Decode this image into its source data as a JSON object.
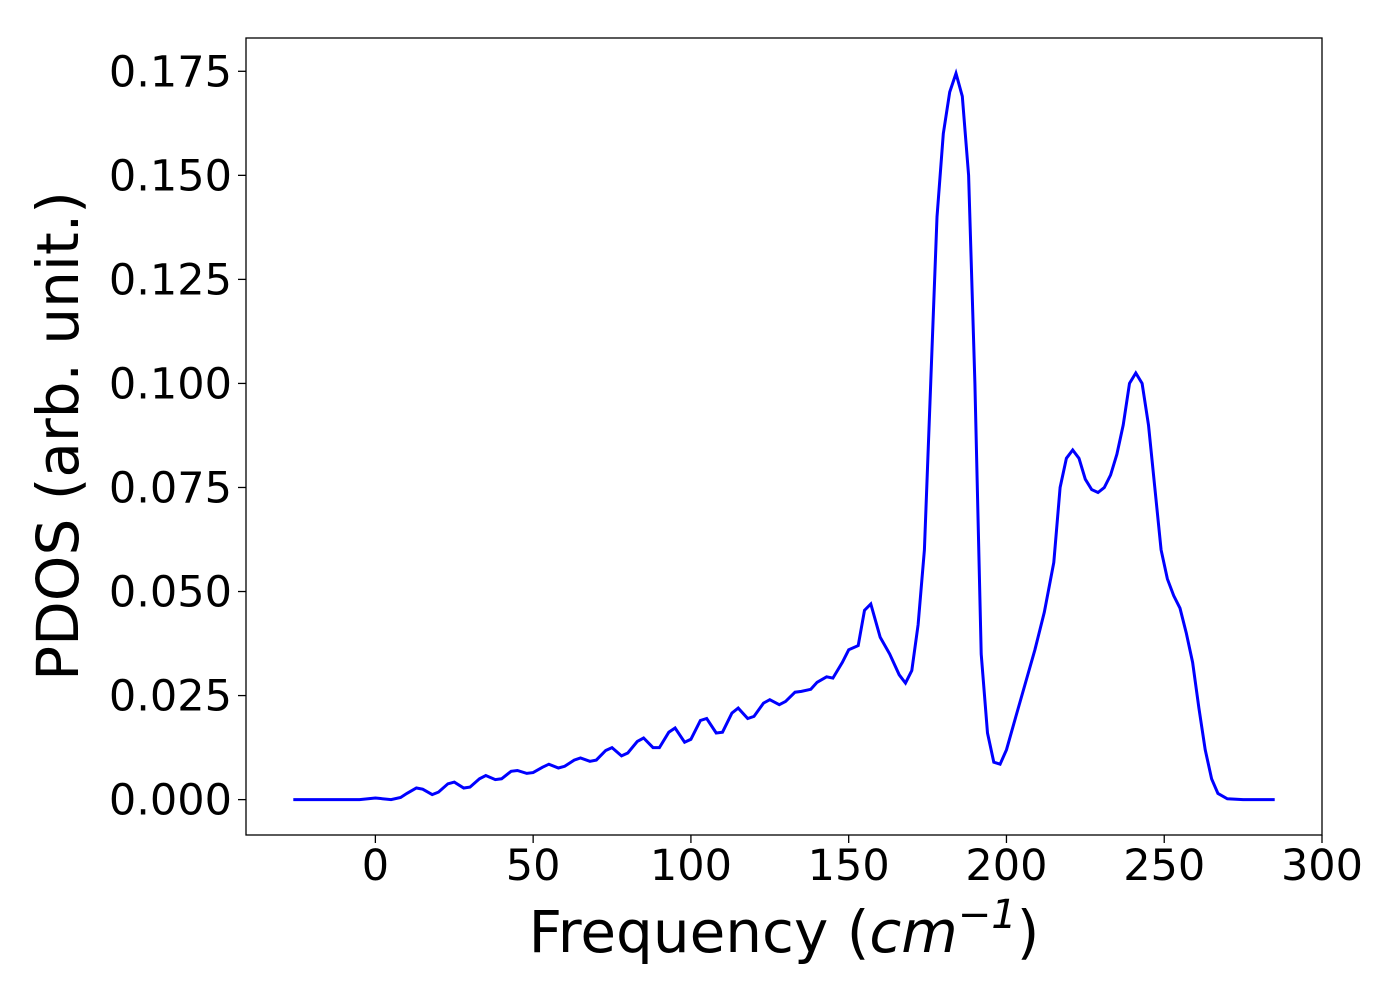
{
  "chart_data": {
    "type": "line",
    "xlabel_prefix": "Frequency (",
    "xlabel_unit_base": "cm",
    "xlabel_unit_exp": "−1",
    "xlabel_suffix": ")",
    "ylabel": "PDOS (arb. unit.)",
    "xlim": [
      -41,
      300
    ],
    "ylim": [
      -0.0085,
      0.183
    ],
    "x_ticks": [
      0,
      50,
      100,
      150,
      200,
      250,
      300
    ],
    "x_tick_labels": [
      "0",
      "50",
      "100",
      "150",
      "200",
      "250",
      "300"
    ],
    "y_ticks": [
      0.0,
      0.025,
      0.05,
      0.075,
      0.1,
      0.125,
      0.15,
      0.175
    ],
    "y_tick_labels": [
      "0.000",
      "0.025",
      "0.050",
      "0.075",
      "0.100",
      "0.125",
      "0.150",
      "0.175"
    ],
    "grid": false,
    "legend": "none",
    "series": [
      {
        "color": "#0000ff",
        "x": [
          -26,
          -20,
          -10,
          -5,
          0,
          5,
          8,
          10,
          13,
          15,
          18,
          20,
          23,
          25,
          28,
          30,
          33,
          35,
          38,
          40,
          43,
          45,
          48,
          50,
          53,
          55,
          58,
          60,
          63,
          65,
          68,
          70,
          73,
          75,
          78,
          80,
          83,
          85,
          88,
          90,
          93,
          95,
          98,
          100,
          103,
          105,
          108,
          110,
          113,
          115,
          118,
          120,
          123,
          125,
          128,
          130,
          133,
          135,
          138,
          140,
          143,
          145,
          148,
          150,
          153,
          155,
          157,
          160,
          163,
          166,
          168,
          170,
          172,
          174,
          176,
          178,
          180,
          182,
          184,
          186,
          188,
          190,
          192,
          194,
          196,
          198,
          200,
          203,
          206,
          209,
          212,
          215,
          217,
          219,
          221,
          223,
          225,
          227,
          229,
          231,
          233,
          235,
          237,
          239,
          241,
          243,
          245,
          247,
          249,
          251,
          253,
          255,
          257,
          259,
          261,
          263,
          265,
          267,
          270,
          275,
          280,
          285
        ],
        "y": [
          0.0,
          0.0,
          0.0,
          0.0,
          0.0004,
          0.0,
          0.0005,
          0.0015,
          0.0028,
          0.0025,
          0.0012,
          0.0018,
          0.0038,
          0.0042,
          0.0028,
          0.003,
          0.005,
          0.0058,
          0.0048,
          0.005,
          0.0068,
          0.007,
          0.0063,
          0.0065,
          0.0078,
          0.0085,
          0.0076,
          0.008,
          0.0095,
          0.01,
          0.0092,
          0.0095,
          0.0118,
          0.0125,
          0.0105,
          0.0112,
          0.014,
          0.0148,
          0.0125,
          0.0125,
          0.0162,
          0.0172,
          0.0138,
          0.0145,
          0.019,
          0.0195,
          0.016,
          0.0162,
          0.0208,
          0.022,
          0.0195,
          0.02,
          0.0232,
          0.024,
          0.0228,
          0.0236,
          0.0258,
          0.026,
          0.0265,
          0.0282,
          0.0295,
          0.0292,
          0.033,
          0.036,
          0.037,
          0.0455,
          0.047,
          0.039,
          0.035,
          0.03,
          0.028,
          0.031,
          0.042,
          0.06,
          0.1,
          0.14,
          0.16,
          0.17,
          0.1745,
          0.169,
          0.15,
          0.1,
          0.035,
          0.016,
          0.009,
          0.0085,
          0.012,
          0.02,
          0.028,
          0.036,
          0.045,
          0.057,
          0.075,
          0.082,
          0.084,
          0.082,
          0.077,
          0.0745,
          0.0738,
          0.075,
          0.078,
          0.083,
          0.09,
          0.1,
          0.1025,
          0.1,
          0.09,
          0.075,
          0.06,
          0.053,
          0.049,
          0.046,
          0.04,
          0.033,
          0.022,
          0.012,
          0.005,
          0.0015,
          0.0002,
          0.0,
          0.0,
          0.0
        ]
      }
    ]
  }
}
